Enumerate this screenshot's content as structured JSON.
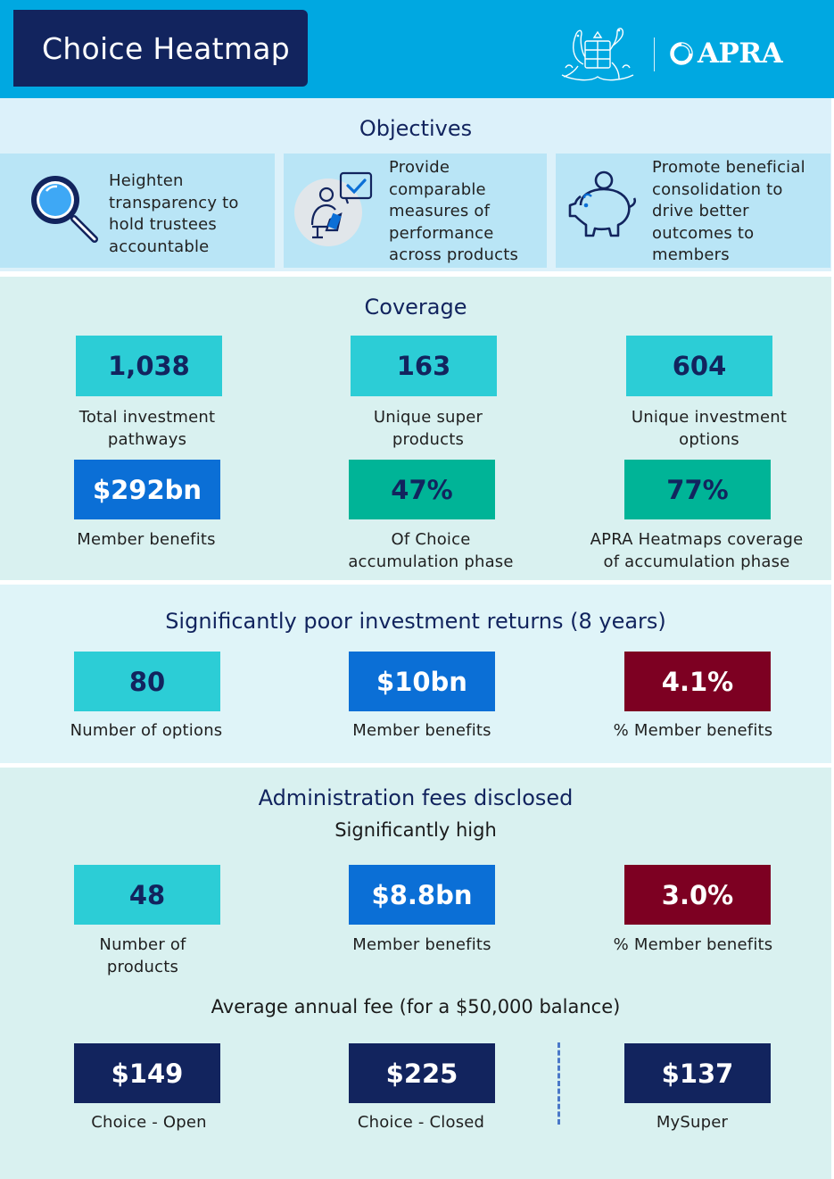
{
  "header": {
    "title": "Choice Heatmap",
    "logo_text": "APRA"
  },
  "objectives": {
    "title": "Objectives",
    "items": [
      {
        "icon": "magnifier-icon",
        "lines": [
          "Heighten",
          "transparency to",
          "hold trustees",
          "accountable"
        ]
      },
      {
        "icon": "person-checklist-icon",
        "lines": [
          "Provide",
          "comparable",
          "measures of",
          "performance",
          "across products"
        ]
      },
      {
        "icon": "piggy-bank-icon",
        "lines": [
          "Promote beneficial",
          "consolidation to",
          "drive better",
          "outcomes to",
          "members"
        ]
      }
    ]
  },
  "coverage": {
    "title": "Coverage",
    "stats": [
      {
        "value": "1,038",
        "label_lines": [
          "Total investment",
          "pathways"
        ],
        "color": "#2ccdd6"
      },
      {
        "value": "163",
        "label_lines": [
          "Unique super",
          "products"
        ],
        "color": "#2ccdd6"
      },
      {
        "value": "604",
        "label_lines": [
          "Unique investment",
          "options"
        ],
        "color": "#2ccdd6"
      },
      {
        "value": "$292bn",
        "label_lines": [
          "Member benefits"
        ],
        "color": "#0b6fd6"
      },
      {
        "value": "47%",
        "label_lines": [
          "Of Choice",
          "accumulation phase"
        ],
        "color": "#00b497"
      },
      {
        "value": "77%",
        "label_lines": [
          "APRA Heatmaps coverage",
          "of accumulation phase"
        ],
        "color": "#00b497"
      }
    ]
  },
  "returns": {
    "title": "Significantly poor investment returns (8 years)",
    "stats": [
      {
        "value": "80",
        "label_lines": [
          "Number of options"
        ],
        "color": "#2ccdd6"
      },
      {
        "value": "$10bn",
        "label_lines": [
          "Member benefits"
        ],
        "color": "#0b6fd6"
      },
      {
        "value": "4.1%",
        "label_lines": [
          "% Member benefits"
        ],
        "color": "#7d0022"
      }
    ]
  },
  "fees": {
    "title": "Administration fees disclosed",
    "subtitle": "Significantly high",
    "stats": [
      {
        "value": "48",
        "label_lines": [
          "Number of",
          "products"
        ],
        "color": "#2ccdd6"
      },
      {
        "value": "$8.8bn",
        "label_lines": [
          "Member benefits"
        ],
        "color": "#0b6fd6"
      },
      {
        "value": "3.0%",
        "label_lines": [
          "% Member benefits"
        ],
        "color": "#7d0022"
      }
    ],
    "avg_title": "Average annual fee (for a $50,000 balance)",
    "avg_stats": [
      {
        "value": "$149",
        "label_lines": [
          "Choice - Open"
        ],
        "color": "#12245e"
      },
      {
        "value": "$225",
        "label_lines": [
          "Choice - Closed"
        ],
        "color": "#12245e"
      },
      {
        "value": "$137",
        "label_lines": [
          "MySuper"
        ],
        "color": "#12245e"
      }
    ]
  }
}
